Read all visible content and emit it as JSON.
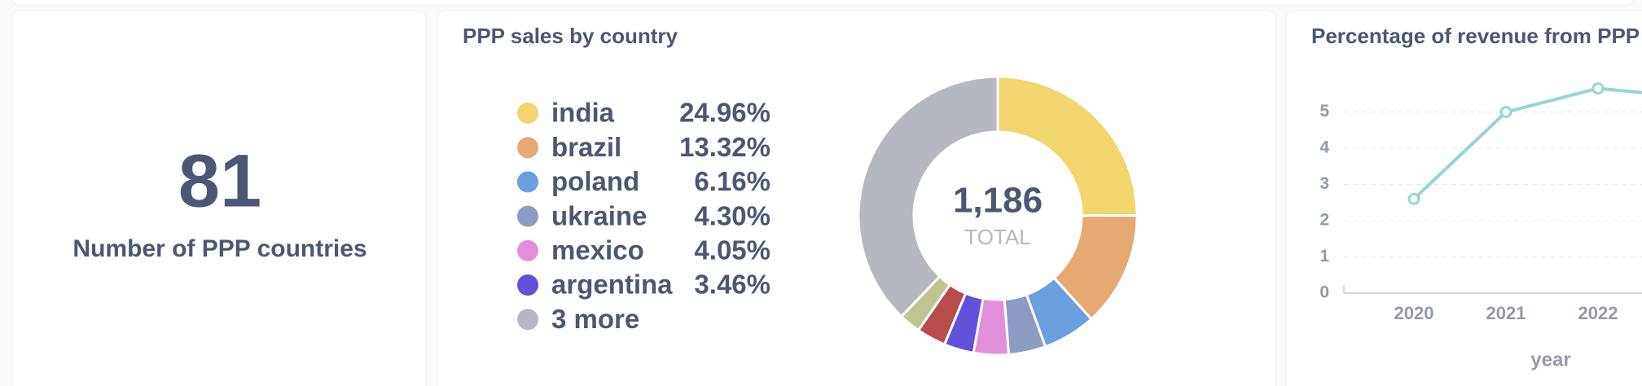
{
  "number_card": {
    "value": 81,
    "label": "Number of PPP countries"
  },
  "chart_data": [
    {
      "type": "pie",
      "title": "PPP sales by country",
      "categories": [
        "india",
        "brazil",
        "poland",
        "ukraine",
        "mexico",
        "argentina",
        null,
        null,
        "3 more"
      ],
      "values": [
        24.96,
        13.32,
        6.16,
        4.3,
        4.05,
        3.46,
        3.4,
        2.5,
        37.85
      ],
      "value_labels": [
        "24.96%",
        "13.32%",
        "6.16%",
        "4.30%",
        "4.05%",
        "3.46%",
        null,
        null,
        null
      ],
      "colors": [
        "#f1d56f",
        "#e6a971",
        "#6a9fe0",
        "#8e9bc5",
        "#e28fdb",
        "#6151da",
        "#b64c4c",
        "#bfc493",
        "#b5b8c0"
      ],
      "total": {
        "value": 1186,
        "label": "1,186"
      },
      "total_caption": "TOTAL"
    },
    {
      "type": "line",
      "title": "Percentage of revenue from PPP",
      "categories": [
        "2020",
        "2021",
        "2022"
      ],
      "values": [
        2.6,
        5.0,
        5.65
      ],
      "color": "#98d4d6",
      "ylim": [
        0,
        6
      ],
      "yticks": [
        0,
        1,
        2,
        3,
        4,
        5
      ],
      "grid": true,
      "x_label": "year"
    }
  ]
}
